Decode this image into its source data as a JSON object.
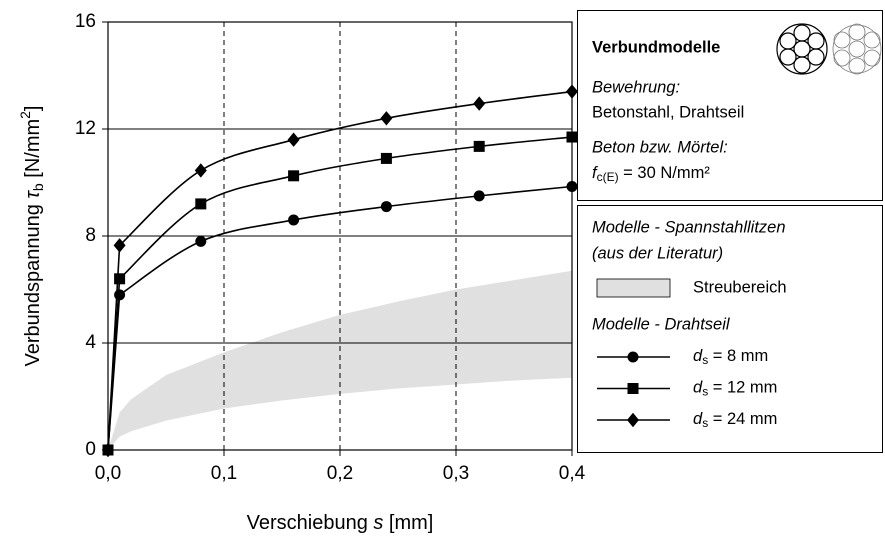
{
  "chart_data": {
    "type": "line",
    "y_label": [
      "Verbundspannung ",
      "τ",
      "b",
      " [N/mm",
      "2",
      "]"
    ],
    "x_label": [
      "Verschiebung ",
      "s",
      " [mm]"
    ],
    "xlim": [
      0,
      0.4
    ],
    "ylim": [
      0,
      16
    ],
    "xticks": [
      {
        "value": 0,
        "label": "0,0"
      },
      {
        "value": 0.1,
        "label": "0,1"
      },
      {
        "value": 0.2,
        "label": "0,2"
      },
      {
        "value": 0.3,
        "label": "0,3"
      },
      {
        "value": 0.4,
        "label": "0,4"
      }
    ],
    "yticks": [
      0,
      4,
      8,
      12,
      16
    ],
    "grid_y": [
      4,
      8,
      12
    ],
    "grid_x": [
      0.1,
      0.2,
      0.3
    ],
    "band": {
      "name": "Streubereich",
      "color": "#e0e0e0",
      "x": [
        0,
        0.01,
        0.02,
        0.05,
        0.1,
        0.15,
        0.2,
        0.25,
        0.3,
        0.35,
        0.4
      ],
      "upper": [
        0,
        1.4,
        1.9,
        2.8,
        3.65,
        4.4,
        5.05,
        5.55,
        6.0,
        6.35,
        6.7
      ],
      "lower": [
        0,
        0.5,
        0.7,
        1.1,
        1.55,
        1.85,
        2.1,
        2.3,
        2.45,
        2.6,
        2.7
      ]
    },
    "legend": {
      "title": "Verbundmodelle",
      "reinforcement_label": "Bewehrung:",
      "reinforcement": "Betonstahl, Drahtseil",
      "concrete_label": "Beton bzw. Mörtel:",
      "concrete": [
        "f",
        "c(E)",
        " = 30 N/mm²"
      ],
      "band_group": "Modelle - Spannstahllitzen",
      "band_source": "(aus der Literatur)",
      "series_group": "Modelle - Drahtseil"
    },
    "series": [
      {
        "name": [
          "d",
          "s",
          " = 8 mm"
        ],
        "marker": "circle",
        "color": "#000000",
        "x": [
          0,
          0.01,
          0.08,
          0.16,
          0.24,
          0.32,
          0.4
        ],
        "values": [
          0,
          5.8,
          7.8,
          8.6,
          9.1,
          9.5,
          9.85
        ]
      },
      {
        "name": [
          "d",
          "s",
          " = 12 mm"
        ],
        "marker": "square",
        "color": "#000000",
        "x": [
          0,
          0.01,
          0.08,
          0.16,
          0.24,
          0.32,
          0.4
        ],
        "values": [
          0,
          6.4,
          9.2,
          10.25,
          10.9,
          11.35,
          11.7
        ]
      },
      {
        "name": [
          "d",
          "s",
          " = 24 mm"
        ],
        "marker": "diamond",
        "color": "#000000",
        "x": [
          0,
          0.01,
          0.08,
          0.16,
          0.24,
          0.32,
          0.4
        ],
        "values": [
          0,
          7.65,
          10.45,
          11.6,
          12.4,
          12.95,
          13.4
        ]
      }
    ]
  }
}
